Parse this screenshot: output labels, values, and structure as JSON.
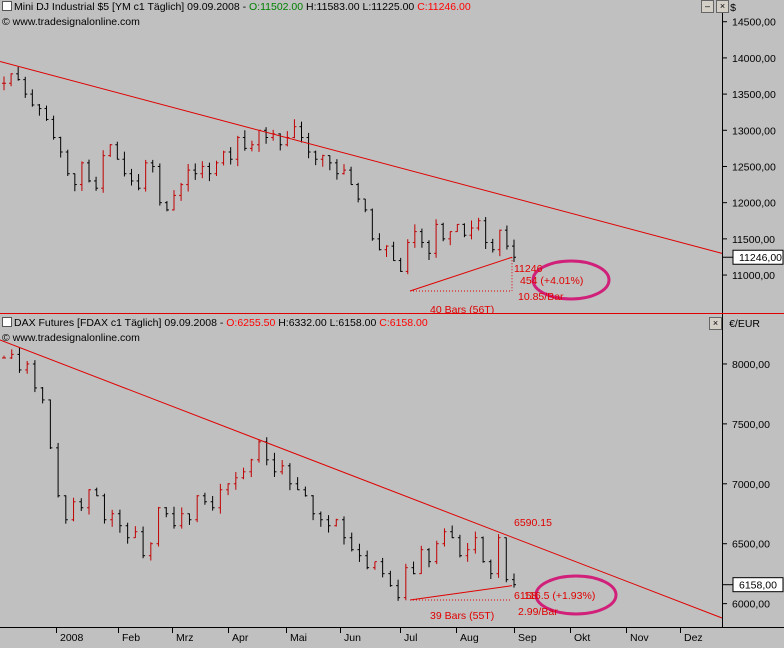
{
  "top": {
    "title_prefix": "Mini DJ Industrial $5 [YM c1  Täglich] 09.09.2008 - ",
    "open": "O:11502.00",
    "high": "H:11583.00",
    "low": "L:11225.00",
    "close": "C:11246.00",
    "copyright": "© www.tradesignalonline.com",
    "unit": "$",
    "last_price": "11246,00",
    "annotation_price": "11246",
    "annotation_change": "454 (+4.01%)",
    "annotation_rate": "10.85/Bar",
    "annotation_bars": "40 Bars (56T)"
  },
  "bottom": {
    "title_prefix": "DAX Futures [FDAX c1  Täglich] 09.09.2008 - ",
    "open": "O:6255.50",
    "high": "H:6332.00",
    "low": "L:6158.00",
    "close": "C:6158.00",
    "copyright": "© www.tradesignalonline.com",
    "unit": "€/EUR",
    "last_price": "6158,00",
    "annotation_level": "6590.15",
    "annotation_price": "6158",
    "annotation_change": "116.5 (+1.93%)",
    "annotation_rate": "2.99/Bar",
    "annotation_bars": "39 Bars (55T)"
  },
  "x_axis": [
    "2008",
    "Feb",
    "Mrz",
    "Apr",
    "Mai",
    "Jun",
    "Jul",
    "Aug",
    "Sep",
    "Okt",
    "Nov",
    "Dez"
  ],
  "colors": {
    "up": "#c00000",
    "down": "#000000",
    "trend": "#e00000",
    "circle": "#d0207a",
    "open": "#008000",
    "close": "#ff0000"
  },
  "chart_data": [
    {
      "type": "line",
      "name": "Mini DJ Industrial $5",
      "ylim": [
        10600,
        14800
      ],
      "y_ticks": [
        "14500,00",
        "14000,00",
        "13500,00",
        "13000,00",
        "12500,00",
        "12000,00",
        "11500,00",
        "11000,00"
      ],
      "y_values": [
        14500,
        14000,
        13500,
        13000,
        12500,
        12000,
        11500,
        11000
      ],
      "closes": [
        13650,
        13780,
        13700,
        13500,
        13350,
        13300,
        13150,
        12900,
        12700,
        12400,
        12250,
        12550,
        12300,
        12200,
        12650,
        12800,
        12600,
        12400,
        12300,
        12200,
        12550,
        12500,
        12000,
        11900,
        12100,
        12250,
        12450,
        12400,
        12500,
        12400,
        12550,
        12700,
        12600,
        12900,
        12750,
        12800,
        13000,
        12900,
        12950,
        12800,
        12900,
        13050,
        12900,
        12700,
        12600,
        12650,
        12550,
        12400,
        12450,
        12250,
        12050,
        11900,
        11500,
        11350,
        11400,
        11200,
        11050,
        11450,
        11600,
        11450,
        11300,
        11700,
        11500,
        11600,
        11700,
        11550,
        11650,
        11750,
        11450,
        11350,
        11620,
        11400,
        11246
      ]
    },
    {
      "type": "line",
      "name": "DAX Futures",
      "ylim": [
        5880,
        8250
      ],
      "y_ticks": [
        "8000,00",
        "7500,00",
        "7000,00",
        "6500,00",
        "6000,00"
      ],
      "y_values": [
        8000,
        7500,
        7000,
        6500,
        6000
      ],
      "closes": [
        8050,
        8080,
        7950,
        8000,
        7800,
        7700,
        7300,
        6900,
        6700,
        6850,
        6800,
        6950,
        6900,
        6700,
        6750,
        6650,
        6550,
        6600,
        6400,
        6500,
        6800,
        6750,
        6650,
        6750,
        6700,
        6900,
        6850,
        6800,
        6950,
        7000,
        7050,
        7100,
        7200,
        7350,
        7200,
        7100,
        7150,
        7000,
        6950,
        6900,
        6750,
        6700,
        6650,
        6700,
        6550,
        6450,
        6400,
        6300,
        6350,
        6250,
        6150,
        6050,
        6300,
        6250,
        6450,
        6350,
        6500,
        6600,
        6550,
        6400,
        6450,
        6550,
        6350,
        6250,
        6550,
        6200,
        6158
      ]
    }
  ]
}
